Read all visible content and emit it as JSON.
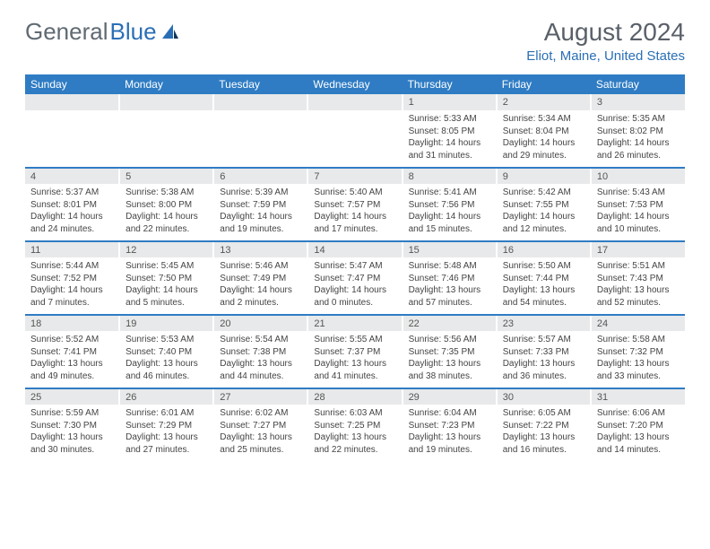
{
  "logo": {
    "text1": "General",
    "text2": "Blue"
  },
  "title": "August 2024",
  "location": "Eliot, Maine, United States",
  "dow": [
    "Sunday",
    "Monday",
    "Tuesday",
    "Wednesday",
    "Thursday",
    "Friday",
    "Saturday"
  ],
  "colors": {
    "header_bg": "#2f7cc4",
    "header_text": "#ffffff",
    "daynum_bg": "#e8e9ea",
    "rule": "#2f7cc4",
    "title_text": "#5a6069",
    "location_text": "#2a6fb5",
    "logo_gray": "#5f6a72",
    "logo_blue": "#2a6fb5",
    "body_text": "#444444",
    "page_bg": "#ffffff"
  },
  "typography": {
    "title_fontsize": 28,
    "location_fontsize": 15,
    "logo_fontsize": 26,
    "header_fontsize": 12,
    "daynum_fontsize": 11,
    "detail_fontsize": 10
  },
  "weeks": [
    [
      null,
      null,
      null,
      null,
      {
        "d": "1",
        "sr": "5:33 AM",
        "ss": "8:05 PM",
        "dl": "14 hours and 31 minutes."
      },
      {
        "d": "2",
        "sr": "5:34 AM",
        "ss": "8:04 PM",
        "dl": "14 hours and 29 minutes."
      },
      {
        "d": "3",
        "sr": "5:35 AM",
        "ss": "8:02 PM",
        "dl": "14 hours and 26 minutes."
      }
    ],
    [
      {
        "d": "4",
        "sr": "5:37 AM",
        "ss": "8:01 PM",
        "dl": "14 hours and 24 minutes."
      },
      {
        "d": "5",
        "sr": "5:38 AM",
        "ss": "8:00 PM",
        "dl": "14 hours and 22 minutes."
      },
      {
        "d": "6",
        "sr": "5:39 AM",
        "ss": "7:59 PM",
        "dl": "14 hours and 19 minutes."
      },
      {
        "d": "7",
        "sr": "5:40 AM",
        "ss": "7:57 PM",
        "dl": "14 hours and 17 minutes."
      },
      {
        "d": "8",
        "sr": "5:41 AM",
        "ss": "7:56 PM",
        "dl": "14 hours and 15 minutes."
      },
      {
        "d": "9",
        "sr": "5:42 AM",
        "ss": "7:55 PM",
        "dl": "14 hours and 12 minutes."
      },
      {
        "d": "10",
        "sr": "5:43 AM",
        "ss": "7:53 PM",
        "dl": "14 hours and 10 minutes."
      }
    ],
    [
      {
        "d": "11",
        "sr": "5:44 AM",
        "ss": "7:52 PM",
        "dl": "14 hours and 7 minutes."
      },
      {
        "d": "12",
        "sr": "5:45 AM",
        "ss": "7:50 PM",
        "dl": "14 hours and 5 minutes."
      },
      {
        "d": "13",
        "sr": "5:46 AM",
        "ss": "7:49 PM",
        "dl": "14 hours and 2 minutes."
      },
      {
        "d": "14",
        "sr": "5:47 AM",
        "ss": "7:47 PM",
        "dl": "14 hours and 0 minutes."
      },
      {
        "d": "15",
        "sr": "5:48 AM",
        "ss": "7:46 PM",
        "dl": "13 hours and 57 minutes."
      },
      {
        "d": "16",
        "sr": "5:50 AM",
        "ss": "7:44 PM",
        "dl": "13 hours and 54 minutes."
      },
      {
        "d": "17",
        "sr": "5:51 AM",
        "ss": "7:43 PM",
        "dl": "13 hours and 52 minutes."
      }
    ],
    [
      {
        "d": "18",
        "sr": "5:52 AM",
        "ss": "7:41 PM",
        "dl": "13 hours and 49 minutes."
      },
      {
        "d": "19",
        "sr": "5:53 AM",
        "ss": "7:40 PM",
        "dl": "13 hours and 46 minutes."
      },
      {
        "d": "20",
        "sr": "5:54 AM",
        "ss": "7:38 PM",
        "dl": "13 hours and 44 minutes."
      },
      {
        "d": "21",
        "sr": "5:55 AM",
        "ss": "7:37 PM",
        "dl": "13 hours and 41 minutes."
      },
      {
        "d": "22",
        "sr": "5:56 AM",
        "ss": "7:35 PM",
        "dl": "13 hours and 38 minutes."
      },
      {
        "d": "23",
        "sr": "5:57 AM",
        "ss": "7:33 PM",
        "dl": "13 hours and 36 minutes."
      },
      {
        "d": "24",
        "sr": "5:58 AM",
        "ss": "7:32 PM",
        "dl": "13 hours and 33 minutes."
      }
    ],
    [
      {
        "d": "25",
        "sr": "5:59 AM",
        "ss": "7:30 PM",
        "dl": "13 hours and 30 minutes."
      },
      {
        "d": "26",
        "sr": "6:01 AM",
        "ss": "7:29 PM",
        "dl": "13 hours and 27 minutes."
      },
      {
        "d": "27",
        "sr": "6:02 AM",
        "ss": "7:27 PM",
        "dl": "13 hours and 25 minutes."
      },
      {
        "d": "28",
        "sr": "6:03 AM",
        "ss": "7:25 PM",
        "dl": "13 hours and 22 minutes."
      },
      {
        "d": "29",
        "sr": "6:04 AM",
        "ss": "7:23 PM",
        "dl": "13 hours and 19 minutes."
      },
      {
        "d": "30",
        "sr": "6:05 AM",
        "ss": "7:22 PM",
        "dl": "13 hours and 16 minutes."
      },
      {
        "d": "31",
        "sr": "6:06 AM",
        "ss": "7:20 PM",
        "dl": "13 hours and 14 minutes."
      }
    ]
  ],
  "labels": {
    "sunrise": "Sunrise: ",
    "sunset": "Sunset: ",
    "daylight": "Daylight: "
  }
}
